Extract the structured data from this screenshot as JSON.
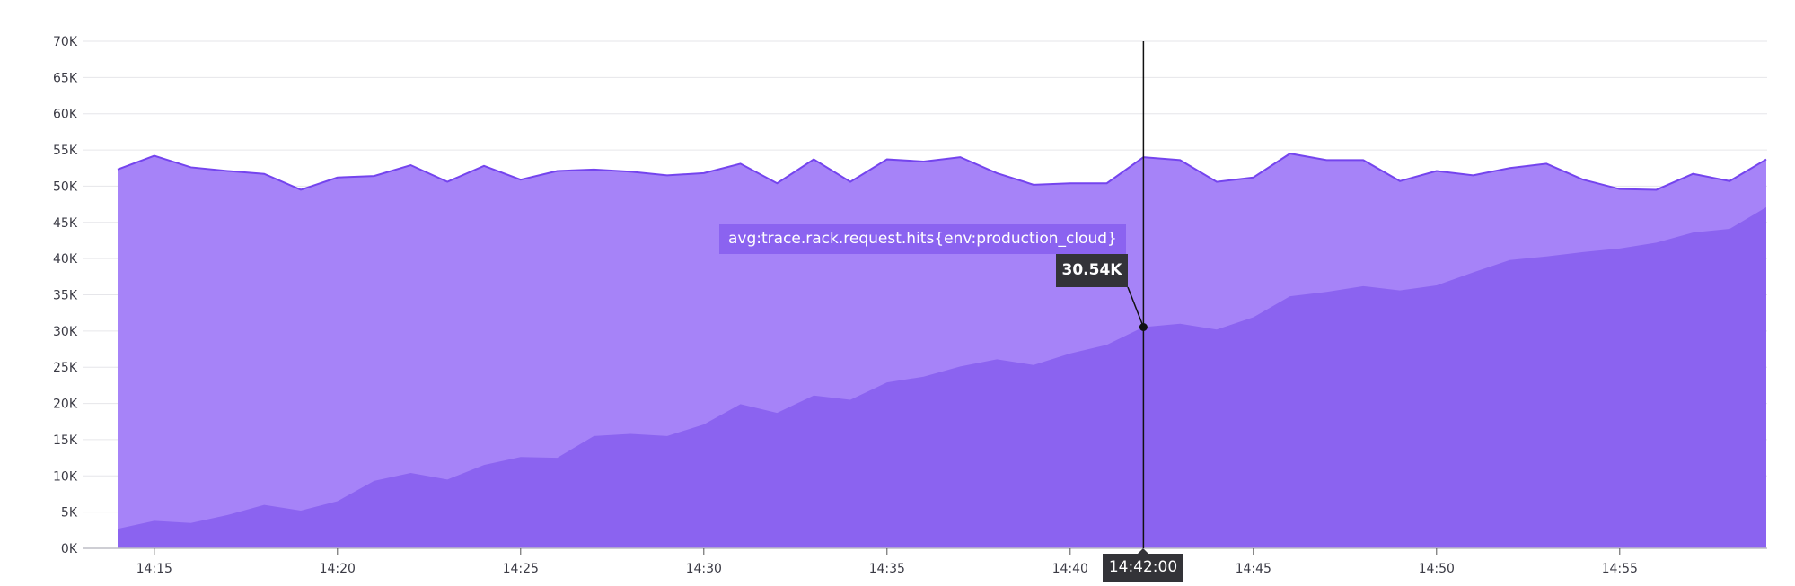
{
  "chart_data": {
    "type": "area",
    "title": "",
    "xlabel": "",
    "ylabel": "",
    "ylim": [
      0,
      70000
    ],
    "yticks": [
      "0K",
      "5K",
      "10K",
      "15K",
      "20K",
      "25K",
      "30K",
      "35K",
      "40K",
      "45K",
      "50K",
      "55K",
      "60K",
      "65K",
      "70K"
    ],
    "xticks": [
      "14:15",
      "14:20",
      "14:25",
      "14:30",
      "14:35",
      "14:40",
      "14:45",
      "14:50",
      "14:55"
    ],
    "x": [
      "14:14",
      "14:15",
      "14:16",
      "14:17",
      "14:18",
      "14:19",
      "14:20",
      "14:21",
      "14:22",
      "14:23",
      "14:24",
      "14:25",
      "14:26",
      "14:27",
      "14:28",
      "14:29",
      "14:30",
      "14:31",
      "14:32",
      "14:33",
      "14:34",
      "14:35",
      "14:36",
      "14:37",
      "14:38",
      "14:39",
      "14:40",
      "14:41",
      "14:42",
      "14:43",
      "14:44",
      "14:45",
      "14:46",
      "14:47",
      "14:48",
      "14:49",
      "14:50",
      "14:51",
      "14:52",
      "14:53",
      "14:54",
      "14:55",
      "14:56",
      "14:57",
      "14:58",
      "14:59"
    ],
    "grid": true,
    "series": [
      {
        "color": "#a683f8",
        "line_color": "#7444ee",
        "values": [
          52300,
          54200,
          52600,
          52100,
          51700,
          49500,
          51200,
          51400,
          52900,
          50600,
          52800,
          50900,
          52100,
          52300,
          52000,
          51500,
          51800,
          53100,
          50400,
          53700,
          50600,
          53700,
          53400,
          54000,
          51800,
          50200,
          50400,
          50400,
          54000,
          53600,
          50600,
          51200,
          54500,
          53600,
          53600,
          50700,
          52100,
          51500,
          52500,
          53100,
          50900,
          49600,
          49500,
          51700,
          50700,
          53700
        ]
      },
      {
        "name": "avg:trace.rack.request.hits{env:production_cloud}",
        "color": "#8b63f0",
        "values": [
          2700,
          3800,
          3500,
          4600,
          6000,
          5200,
          6500,
          9300,
          10400,
          9500,
          11500,
          12600,
          12500,
          15500,
          15800,
          15500,
          17100,
          19900,
          18700,
          21100,
          20500,
          22900,
          23700,
          25100,
          26100,
          25300,
          26900,
          28100,
          30540,
          31000,
          30200,
          31900,
          34800,
          35400,
          36200,
          35600,
          36300,
          38100,
          39800,
          40300,
          40900,
          41400,
          42200,
          43600,
          44100,
          47100
        ]
      }
    ],
    "hover": {
      "x": "14:42",
      "time_label": "14:42:00",
      "series_label": "avg:trace.rack.request.hits{env:production_cloud}",
      "value_label": "30.54K"
    }
  }
}
